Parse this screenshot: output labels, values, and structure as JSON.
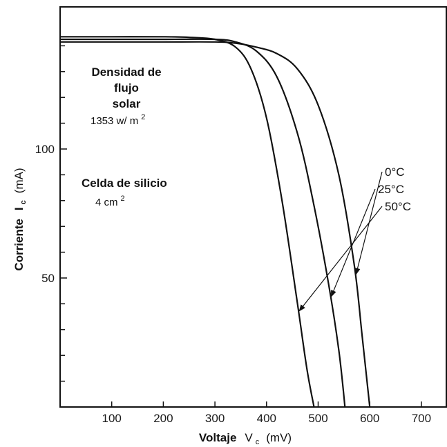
{
  "chart_data": {
    "type": "line",
    "title": "",
    "xlabel": {
      "main": "Voltaje",
      "symbol": "V",
      "subscript": "c",
      "unit": "(mV)"
    },
    "ylabel": {
      "main": "Corriente",
      "symbol": "I",
      "subscript": "c",
      "unit": "(mA)"
    },
    "xlim": [
      0,
      750
    ],
    "ylim": [
      0,
      150
    ],
    "x_ticks": [
      100,
      200,
      300,
      400,
      500,
      600,
      700
    ],
    "y_ticks": [
      50,
      100
    ],
    "y_minor_ticks": [
      10,
      20,
      30,
      40,
      60,
      70,
      80,
      90,
      110,
      120,
      130,
      140
    ],
    "grid": false,
    "annotations": {
      "flux_title_line1": "Densidad de",
      "flux_title_line2": "flujo",
      "flux_title_line3": "solar",
      "flux_value": "1353 w/ m",
      "flux_value_exp": "2",
      "cell_title": "Celda de silicio",
      "cell_area": "4 cm",
      "cell_area_exp": "2"
    },
    "series": [
      {
        "name": "0°C",
        "x": [
          0,
          100,
          200,
          300,
          340,
          380,
          420,
          460,
          500,
          540,
          570,
          585,
          600
        ],
        "y": [
          141.5,
          141.5,
          141.5,
          141.5,
          141.0,
          139.5,
          137.0,
          131.0,
          117.0,
          90.0,
          55.0,
          28.0,
          0
        ]
      },
      {
        "name": "25°C",
        "x": [
          0,
          100,
          200,
          300,
          340,
          380,
          420,
          460,
          490,
          520,
          540,
          552
        ],
        "y": [
          142.5,
          142.5,
          142.5,
          142.5,
          141.5,
          138.0,
          128.0,
          106.0,
          80.0,
          48.0,
          22.0,
          0
        ]
      },
      {
        "name": "50°C",
        "x": [
          0,
          100,
          200,
          250,
          300,
          340,
          370,
          400,
          430,
          460,
          478,
          492
        ],
        "y": [
          143.5,
          143.5,
          143.5,
          143.3,
          142.5,
          139.5,
          131.0,
          112.0,
          80.0,
          40.0,
          15.0,
          0
        ]
      }
    ]
  }
}
